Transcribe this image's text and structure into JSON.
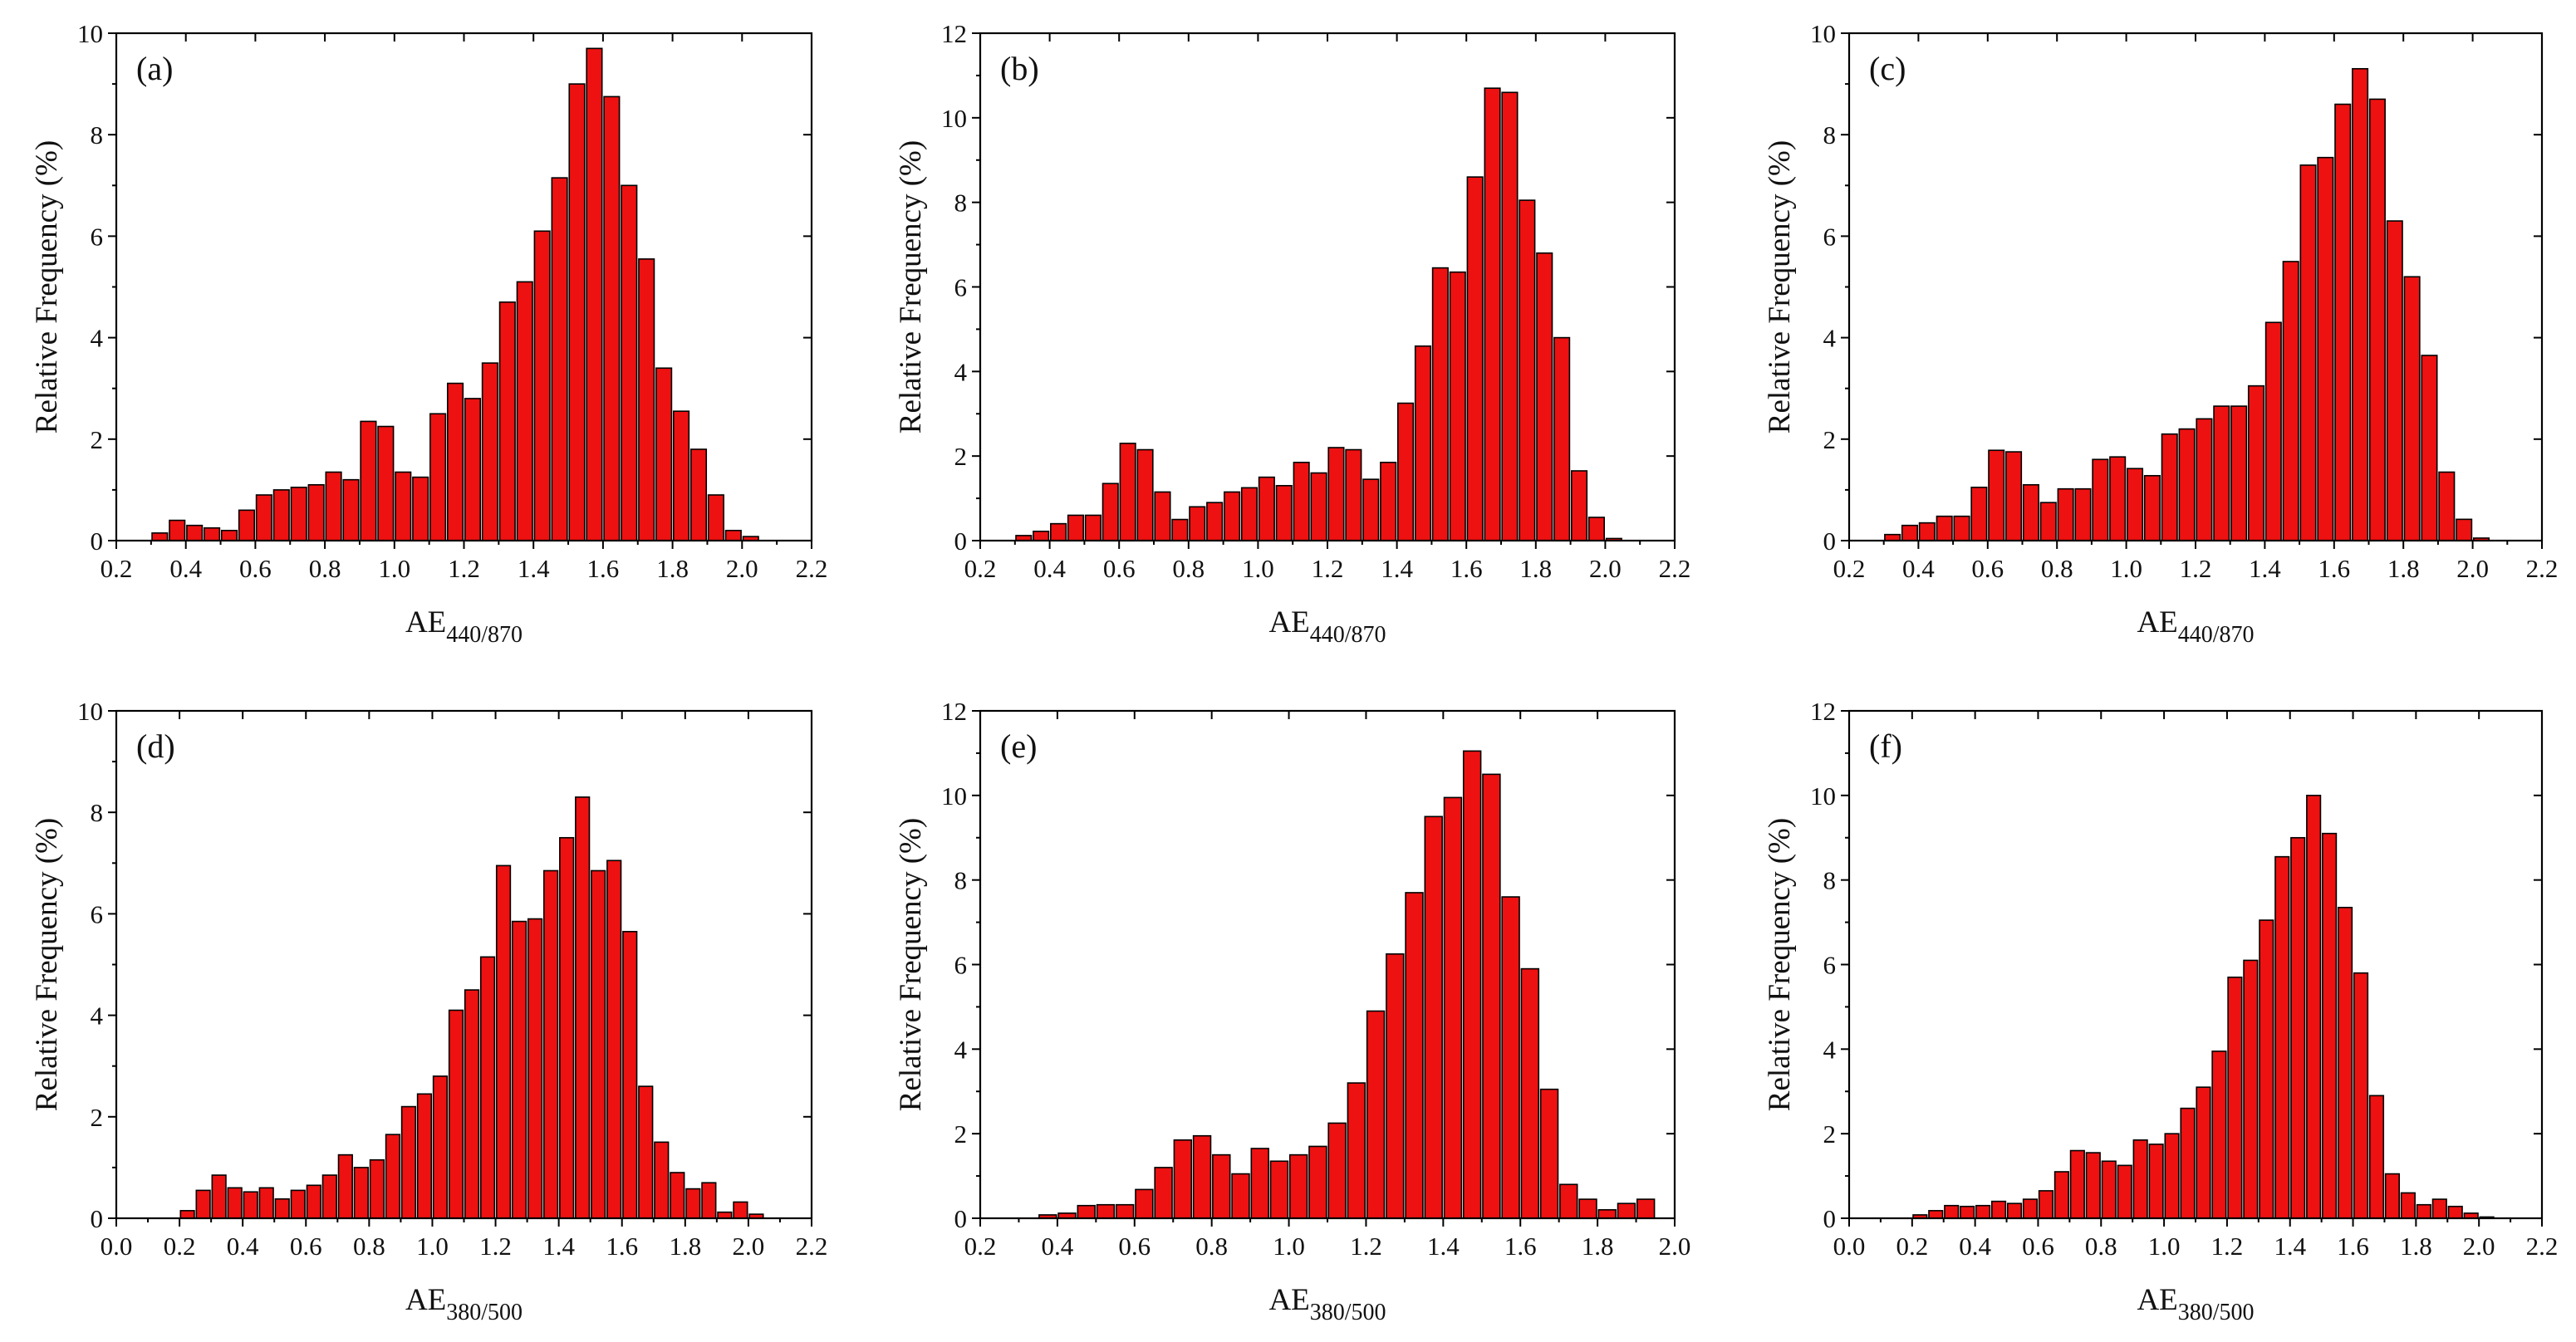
{
  "colors": {
    "bar_fill": "#ee1111",
    "bar_stroke": "#000000",
    "axis": "#000000"
  },
  "chart_data": [
    {
      "type": "bar",
      "panel_label": "(a)",
      "title": "",
      "ylabel": "Relative Frequency (%)",
      "xlabel_main": "AE",
      "xlabel_sub": "440/870",
      "xlim": [
        0.2,
        2.2
      ],
      "ylim": [
        0,
        10
      ],
      "xticks": [
        "0.2",
        "0.4",
        "0.6",
        "0.8",
        "1.0",
        "1.2",
        "1.4",
        "1.6",
        "1.8",
        "2.0",
        "2.2"
      ],
      "yticks": [
        "0",
        "2",
        "4",
        "6",
        "8",
        "10"
      ],
      "bin_width": 0.05,
      "bin_start": 0.3,
      "values": [
        0.15,
        0.4,
        0.3,
        0.25,
        0.2,
        0.6,
        0.9,
        1.0,
        1.05,
        1.1,
        1.35,
        1.2,
        2.35,
        2.25,
        1.35,
        1.25,
        2.5,
        3.1,
        2.8,
        3.5,
        4.7,
        5.1,
        6.1,
        7.15,
        9.0,
        9.7,
        8.75,
        7.0,
        5.55,
        3.4,
        2.55,
        1.8,
        0.9,
        0.2,
        0.08,
        0.0
      ]
    },
    {
      "type": "bar",
      "panel_label": "(b)",
      "title": "",
      "ylabel": "Relative Frequency (%)",
      "xlabel_main": "AE",
      "xlabel_sub": "440/870",
      "xlim": [
        0.2,
        2.2
      ],
      "ylim": [
        0,
        12
      ],
      "xticks": [
        "0.2",
        "0.4",
        "0.6",
        "0.8",
        "1.0",
        "1.2",
        "1.4",
        "1.6",
        "1.8",
        "2.0",
        "2.2"
      ],
      "yticks": [
        "0",
        "2",
        "4",
        "6",
        "8",
        "10",
        "12"
      ],
      "bin_width": 0.05,
      "bin_start": 0.3,
      "values": [
        0.12,
        0.22,
        0.4,
        0.6,
        0.6,
        1.35,
        2.3,
        2.15,
        1.15,
        0.5,
        0.8,
        0.9,
        1.15,
        1.25,
        1.5,
        1.3,
        1.85,
        1.6,
        2.2,
        2.15,
        1.45,
        1.85,
        3.25,
        4.6,
        6.45,
        6.35,
        8.6,
        10.7,
        10.6,
        8.05,
        6.8,
        4.8,
        1.65,
        0.55,
        0.05,
        0.0
      ]
    },
    {
      "type": "bar",
      "panel_label": "(c)",
      "title": "",
      "ylabel": "Relative Frequency (%)",
      "xlabel_main": "AE",
      "xlabel_sub": "440/870",
      "xlim": [
        0.2,
        2.2
      ],
      "ylim": [
        0,
        10
      ],
      "xticks": [
        "0.2",
        "0.4",
        "0.6",
        "0.8",
        "1.0",
        "1.2",
        "1.4",
        "1.6",
        "1.8",
        "2.0",
        "2.2"
      ],
      "yticks": [
        "0",
        "2",
        "4",
        "6",
        "8",
        "10"
      ],
      "bin_width": 0.05,
      "bin_start": 0.3,
      "values": [
        0.12,
        0.3,
        0.35,
        0.48,
        0.48,
        1.05,
        1.78,
        1.75,
        1.1,
        0.75,
        1.02,
        1.02,
        1.6,
        1.65,
        1.42,
        1.28,
        2.1,
        2.2,
        2.4,
        2.65,
        2.65,
        3.05,
        4.3,
        5.5,
        7.4,
        7.55,
        8.6,
        9.3,
        8.7,
        6.3,
        5.2,
        3.65,
        1.35,
        0.42,
        0.05,
        0.0
      ]
    },
    {
      "type": "bar",
      "panel_label": "(d)",
      "title": "",
      "ylabel": "Relative Frequency (%)",
      "xlabel_main": "AE",
      "xlabel_sub": "380/500",
      "xlim": [
        0.0,
        2.2
      ],
      "ylim": [
        0,
        10
      ],
      "xticks": [
        "0.0",
        "0.2",
        "0.4",
        "0.6",
        "0.8",
        "1.0",
        "1.2",
        "1.4",
        "1.6",
        "1.8",
        "2.0",
        "2.2"
      ],
      "yticks": [
        "0",
        "2",
        "4",
        "6",
        "8",
        "10"
      ],
      "bin_width": 0.05,
      "bin_start": 0.2,
      "values": [
        0.15,
        0.55,
        0.85,
        0.6,
        0.52,
        0.6,
        0.38,
        0.55,
        0.65,
        0.85,
        1.25,
        1.0,
        1.15,
        1.65,
        2.2,
        2.45,
        2.8,
        4.1,
        4.5,
        5.15,
        6.95,
        5.85,
        5.9,
        6.85,
        7.5,
        8.3,
        6.85,
        7.05,
        5.65,
        2.6,
        1.5,
        0.9,
        0.58,
        0.7,
        0.12,
        0.32,
        0.08
      ]
    },
    {
      "type": "bar",
      "panel_label": "(e)",
      "title": "",
      "ylabel": "Relative Frequency (%)",
      "xlabel_main": "AE",
      "xlabel_sub": "380/500",
      "xlim": [
        0.2,
        2.0
      ],
      "ylim": [
        0,
        12
      ],
      "xticks": [
        "0.2",
        "0.4",
        "0.6",
        "0.8",
        "1.0",
        "1.2",
        "1.4",
        "1.6",
        "1.8",
        "2.0"
      ],
      "yticks": [
        "0",
        "2",
        "4",
        "6",
        "8",
        "10",
        "12"
      ],
      "bin_width": 0.05,
      "bin_start": 0.35,
      "values": [
        0.08,
        0.12,
        0.3,
        0.32,
        0.32,
        0.68,
        1.2,
        1.85,
        1.95,
        1.5,
        1.05,
        1.65,
        1.35,
        1.5,
        1.7,
        2.25,
        3.2,
        4.9,
        6.25,
        7.7,
        9.5,
        9.95,
        11.05,
        10.5,
        7.6,
        5.9,
        3.05,
        0.8,
        0.45,
        0.2,
        0.35,
        0.45
      ]
    },
    {
      "type": "bar",
      "panel_label": "(f)",
      "title": "",
      "ylabel": "Relative Frequency (%)",
      "xlabel_main": "AE",
      "xlabel_sub": "380/500",
      "xlim": [
        0.0,
        2.2
      ],
      "ylim": [
        0,
        12
      ],
      "xticks": [
        "0.0",
        "0.2",
        "0.4",
        "0.6",
        "0.8",
        "1.0",
        "1.2",
        "1.4",
        "1.6",
        "1.8",
        "2.0",
        "2.2"
      ],
      "yticks": [
        "0",
        "2",
        "4",
        "6",
        "8",
        "10",
        "12"
      ],
      "bin_width": 0.05,
      "bin_start": 0.2,
      "values": [
        0.08,
        0.18,
        0.3,
        0.28,
        0.3,
        0.4,
        0.35,
        0.45,
        0.65,
        1.1,
        1.6,
        1.55,
        1.35,
        1.25,
        1.85,
        1.75,
        2.0,
        2.6,
        3.1,
        3.95,
        5.7,
        6.1,
        7.05,
        8.55,
        9.0,
        10.0,
        9.1,
        7.35,
        5.8,
        2.9,
        1.05,
        0.6,
        0.32,
        0.45,
        0.28,
        0.12,
        0.03
      ]
    }
  ]
}
